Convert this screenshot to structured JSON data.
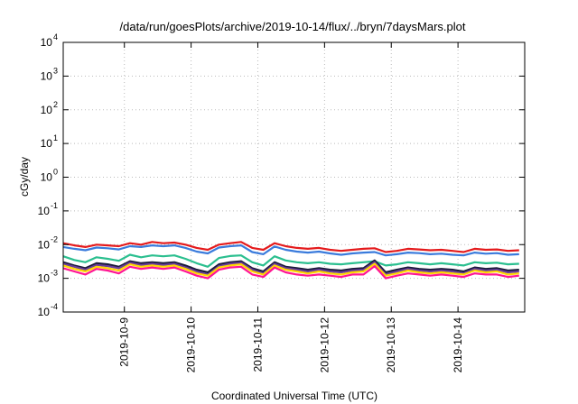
{
  "chart_data": {
    "type": "line",
    "title": "/data/run/goesPlots/archive/2019-10-14/flux/../bryn/7daysMars.plot",
    "xlabel": "Coordinated Universal Time (UTC)",
    "ylabel": "cGy/day",
    "y_scale": "log",
    "ylim": [
      0.0001,
      10000
    ],
    "xlim": [
      "2019-10-08T02:00",
      "2019-10-15T00:00"
    ],
    "grid": true,
    "legend": "none",
    "y_ticks": [
      {
        "base": "10",
        "exp": "4",
        "value": 10000
      },
      {
        "base": "10",
        "exp": "3",
        "value": 1000
      },
      {
        "base": "10",
        "exp": "2",
        "value": 100
      },
      {
        "base": "10",
        "exp": "1",
        "value": 10
      },
      {
        "base": "10",
        "exp": "0",
        "value": 1
      },
      {
        "base": "10",
        "exp": "-1",
        "value": 0.1
      },
      {
        "base": "10",
        "exp": "-2",
        "value": 0.01
      },
      {
        "base": "10",
        "exp": "-3",
        "value": 0.001
      },
      {
        "base": "10",
        "exp": "-4",
        "value": 0.0001
      }
    ],
    "x_ticks": [
      {
        "label": "2019-10-9",
        "value": "2019-10-09T00:00"
      },
      {
        "label": "2019-10-10",
        "value": "2019-10-10T00:00"
      },
      {
        "label": "2019-10-11",
        "value": "2019-10-11T00:00"
      },
      {
        "label": "2019-10-12",
        "value": "2019-10-12T00:00"
      },
      {
        "label": "2019-10-13",
        "value": "2019-10-13T00:00"
      },
      {
        "label": "2019-10-14",
        "value": "2019-10-14T00:00"
      }
    ],
    "x": [
      "2019-10-08T02:00",
      "2019-10-08T06:00",
      "2019-10-08T10:00",
      "2019-10-08T14:00",
      "2019-10-08T18:00",
      "2019-10-08T22:00",
      "2019-10-09T02:00",
      "2019-10-09T06:00",
      "2019-10-09T10:00",
      "2019-10-09T14:00",
      "2019-10-09T18:00",
      "2019-10-09T22:00",
      "2019-10-10T02:00",
      "2019-10-10T06:00",
      "2019-10-10T10:00",
      "2019-10-10T14:00",
      "2019-10-10T18:00",
      "2019-10-10T22:00",
      "2019-10-11T02:00",
      "2019-10-11T06:00",
      "2019-10-11T10:00",
      "2019-10-11T14:00",
      "2019-10-11T18:00",
      "2019-10-11T22:00",
      "2019-10-12T02:00",
      "2019-10-12T06:00",
      "2019-10-12T10:00",
      "2019-10-12T14:00",
      "2019-10-12T18:00",
      "2019-10-12T22:00",
      "2019-10-13T02:00",
      "2019-10-13T06:00",
      "2019-10-13T10:00",
      "2019-10-13T14:00",
      "2019-10-13T18:00",
      "2019-10-13T22:00",
      "2019-10-14T02:00",
      "2019-10-14T06:00",
      "2019-10-14T10:00",
      "2019-10-14T14:00",
      "2019-10-14T18:00",
      "2019-10-14T22:00"
    ],
    "series": [
      {
        "color": "#e41a1c",
        "values": [
          0.011,
          0.0095,
          0.0085,
          0.01,
          0.0095,
          0.009,
          0.011,
          0.01,
          0.012,
          0.011,
          0.0115,
          0.01,
          0.008,
          0.007,
          0.01,
          0.011,
          0.012,
          0.008,
          0.007,
          0.011,
          0.009,
          0.008,
          0.0075,
          0.008,
          0.007,
          0.0065,
          0.007,
          0.0075,
          0.0078,
          0.006,
          0.0065,
          0.0075,
          0.0072,
          0.0068,
          0.007,
          0.0065,
          0.006,
          0.0075,
          0.007,
          0.0072,
          0.0065,
          0.0068
        ]
      },
      {
        "color": "#3a7bdc",
        "values": [
          0.0085,
          0.0075,
          0.0068,
          0.0082,
          0.0078,
          0.0072,
          0.009,
          0.0085,
          0.0095,
          0.009,
          0.0095,
          0.008,
          0.0062,
          0.0055,
          0.0082,
          0.009,
          0.0095,
          0.006,
          0.0052,
          0.0088,
          0.007,
          0.0062,
          0.0058,
          0.0062,
          0.0055,
          0.005,
          0.0055,
          0.0058,
          0.006,
          0.0048,
          0.0052,
          0.0058,
          0.0056,
          0.0052,
          0.0054,
          0.005,
          0.0048,
          0.0058,
          0.0054,
          0.0056,
          0.005,
          0.0052
        ]
      },
      {
        "color": "#2bbf8f",
        "values": [
          0.0045,
          0.0035,
          0.003,
          0.0042,
          0.0038,
          0.0033,
          0.005,
          0.0042,
          0.0048,
          0.0045,
          0.0048,
          0.0038,
          0.0028,
          0.0022,
          0.004,
          0.0046,
          0.0048,
          0.003,
          0.0024,
          0.0045,
          0.0034,
          0.003,
          0.0028,
          0.003,
          0.0027,
          0.0026,
          0.0028,
          0.003,
          0.0032,
          0.0024,
          0.0026,
          0.003,
          0.0028,
          0.0026,
          0.0028,
          0.0026,
          0.0024,
          0.003,
          0.0028,
          0.0029,
          0.0026,
          0.0027
        ]
      },
      {
        "color": "#1a1a3a",
        "values": [
          0.003,
          0.0024,
          0.002,
          0.0028,
          0.0026,
          0.0022,
          0.0032,
          0.0028,
          0.003,
          0.0028,
          0.003,
          0.0024,
          0.0018,
          0.0015,
          0.0026,
          0.003,
          0.0032,
          0.002,
          0.0016,
          0.003,
          0.0022,
          0.002,
          0.0018,
          0.002,
          0.0018,
          0.0017,
          0.0019,
          0.002,
          0.0034,
          0.0015,
          0.0018,
          0.0021,
          0.0019,
          0.0018,
          0.0019,
          0.0018,
          0.0016,
          0.0021,
          0.0019,
          0.002,
          0.0017,
          0.0018
        ]
      },
      {
        "color": "#6a3d9a",
        "values": [
          0.0027,
          0.0022,
          0.0018,
          0.0025,
          0.0023,
          0.002,
          0.0029,
          0.0025,
          0.0027,
          0.0025,
          0.0027,
          0.0021,
          0.0016,
          0.0013,
          0.0023,
          0.0027,
          0.0029,
          0.0018,
          0.0014,
          0.0027,
          0.002,
          0.0018,
          0.0016,
          0.0018,
          0.0016,
          0.0015,
          0.0017,
          0.0018,
          0.003,
          0.0013,
          0.0016,
          0.0019,
          0.0017,
          0.0016,
          0.0017,
          0.0016,
          0.0014,
          0.0019,
          0.0017,
          0.0018,
          0.0015,
          0.0016
        ]
      },
      {
        "color": "#ffd700",
        "values": [
          0.0024,
          0.0019,
          0.0016,
          0.0022,
          0.002,
          0.0017,
          0.0026,
          0.0022,
          0.0024,
          0.0022,
          0.0024,
          0.0019,
          0.0014,
          0.0012,
          0.0021,
          0.0024,
          0.0026,
          0.0016,
          0.0013,
          0.0024,
          0.0018,
          0.0016,
          0.0014,
          0.0016,
          0.0014,
          0.0013,
          0.0015,
          0.0016,
          0.0027,
          0.0012,
          0.0014,
          0.0017,
          0.0015,
          0.0014,
          0.0015,
          0.0014,
          0.0013,
          0.0017,
          0.0015,
          0.0016,
          0.0013,
          0.0014
        ]
      },
      {
        "color": "#ff1493",
        "values": [
          0.002,
          0.0016,
          0.0013,
          0.0019,
          0.0017,
          0.0014,
          0.0022,
          0.0019,
          0.0021,
          0.0019,
          0.0021,
          0.0016,
          0.0012,
          0.001,
          0.0018,
          0.0021,
          0.0022,
          0.0013,
          0.0011,
          0.0021,
          0.0015,
          0.0013,
          0.0012,
          0.0013,
          0.0012,
          0.0011,
          0.0013,
          0.0013,
          0.0023,
          0.001,
          0.0012,
          0.0014,
          0.0013,
          0.0012,
          0.0013,
          0.0012,
          0.0011,
          0.0014,
          0.0013,
          0.0013,
          0.0011,
          0.0012
        ]
      }
    ]
  }
}
